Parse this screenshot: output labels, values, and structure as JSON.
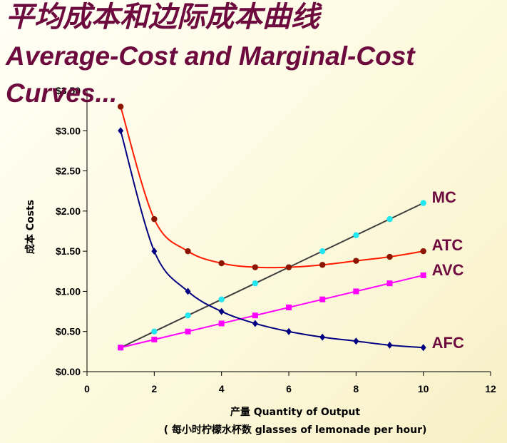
{
  "slide": {
    "title_zh": "平均成本和边际成本曲线",
    "title_en_line1": "Average-Cost and Marginal-Cost",
    "title_en_line2": "Curves..."
  },
  "chart_data": {
    "type": "line",
    "xlabel": "产量  Quantity of Output",
    "xlabel2": "( 每小时柠檬水杯数  glasses of lemonade per hour)",
    "ylabel": "成本  Costs",
    "xlim": [
      0,
      12
    ],
    "ylim": [
      0,
      3.5
    ],
    "x_ticks": [
      0,
      2,
      4,
      6,
      8,
      10,
      12
    ],
    "y_ticks": [
      0,
      0.5,
      1.0,
      1.5,
      2.0,
      2.5,
      3.0,
      3.5
    ],
    "x_tick_labels": [
      "0",
      "2",
      "4",
      "6",
      "8",
      "10",
      "12"
    ],
    "y_tick_labels": [
      "$0.00",
      "$0.50",
      "$1.00",
      "$1.50",
      "$2.00",
      "$2.50",
      "$3.00",
      "$3.50"
    ],
    "grid": false,
    "series": [
      {
        "name": "MC",
        "color": "#404040",
        "marker": "circle",
        "marker_color": "#22e6f2",
        "smooth": false,
        "x": [
          1,
          2,
          3,
          4,
          5,
          6,
          7,
          8,
          9,
          10
        ],
        "y": [
          0.3,
          0.5,
          0.7,
          0.9,
          1.1,
          1.3,
          1.5,
          1.7,
          1.9,
          2.1
        ]
      },
      {
        "name": "ATC",
        "color": "#ff1a00",
        "marker": "circle",
        "marker_color": "#8b1500",
        "smooth": true,
        "x": [
          1,
          2,
          3,
          4,
          5,
          6,
          7,
          8,
          9,
          10
        ],
        "y": [
          3.3,
          1.9,
          1.5,
          1.35,
          1.3,
          1.3,
          1.33,
          1.38,
          1.43,
          1.5
        ]
      },
      {
        "name": "AVC",
        "color": "#ff00ff",
        "marker": "square",
        "marker_color": "#ff00ff",
        "smooth": false,
        "x": [
          1,
          2,
          3,
          4,
          5,
          6,
          7,
          8,
          9,
          10
        ],
        "y": [
          0.3,
          0.4,
          0.5,
          0.6,
          0.7,
          0.8,
          0.9,
          1.0,
          1.1,
          1.2
        ]
      },
      {
        "name": "AFC",
        "color": "#000080",
        "marker": "diamond",
        "marker_color": "#000080",
        "smooth": true,
        "x": [
          1,
          2,
          3,
          4,
          5,
          6,
          7,
          8,
          9,
          10
        ],
        "y": [
          3.0,
          1.5,
          1.0,
          0.75,
          0.6,
          0.5,
          0.43,
          0.38,
          0.33,
          0.3
        ]
      }
    ]
  }
}
